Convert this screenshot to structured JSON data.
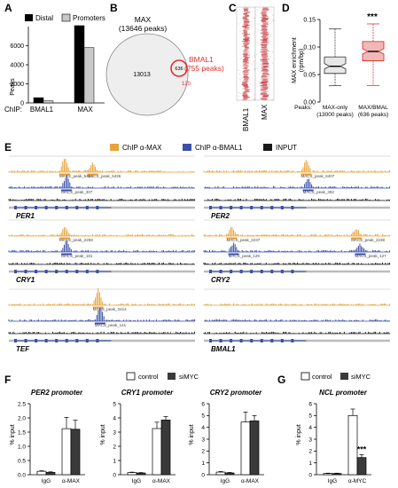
{
  "panels": {
    "A": "A",
    "B": "B",
    "C": "C",
    "D": "D",
    "E": "E",
    "F": "F",
    "G": "G"
  },
  "colors": {
    "max": "#e8a33a",
    "bmal1": "#3a4fa8",
    "input": "#1a1a1a",
    "bmal1_circle": "#e03030",
    "box_red": "#d63a3a",
    "bar_dark": "#3a3a3a",
    "bar_light": "#c8c8c8",
    "heat": "#c0262c"
  },
  "chart_data": [
    {
      "panel": "A",
      "type": "bar",
      "ylabel": "Peaks",
      "xlabel_prefix": "ChIP:",
      "categories": [
        "BMAL1",
        "MAX"
      ],
      "series": [
        {
          "name": "Distal",
          "values": [
            550,
            8100
          ]
        },
        {
          "name": "Promoters",
          "values": [
            210,
            5800
          ]
        }
      ],
      "ylim": [
        0,
        8000
      ],
      "yticks": [
        "0",
        "2000",
        "4000",
        "6000"
      ],
      "legend": "top"
    },
    {
      "panel": "B",
      "type": "venn",
      "sets": [
        {
          "name": "MAX",
          "peaks": "(13646 peaks)",
          "only": "13013"
        },
        {
          "name": "BMAL1",
          "peaks": "(755 peaks)",
          "only": "120"
        }
      ],
      "overlap": "636"
    },
    {
      "panel": "C",
      "type": "heatmap",
      "columns": [
        "BMAL1",
        "MAX"
      ]
    },
    {
      "panel": "D",
      "type": "box",
      "ylabel": "MAX enrichment\n(rpm/bp)",
      "ylim": [
        0.0,
        0.15
      ],
      "yticks": [
        "0.00",
        "0.05",
        "0.10",
        "0.15"
      ],
      "xlabel_prefix": "Peaks:",
      "categories": [
        {
          "label": "MAX-only",
          "n": "(13000 peaks)",
          "min": 0.03,
          "q1": 0.052,
          "median": 0.065,
          "q3": 0.082,
          "max": 0.133
        },
        {
          "label": "MAX/BMAL",
          "n": "(636 peaks)",
          "min": 0.03,
          "q1": 0.075,
          "median": 0.092,
          "q3": 0.11,
          "max": 0.142
        }
      ],
      "significance": "***"
    },
    {
      "panel": "F",
      "type": "bar",
      "legend": [
        "control",
        "siMYC"
      ],
      "ylabel": "% input",
      "charts": [
        {
          "title": "PER2 promoter",
          "categories": [
            "IgG",
            "α-MAX"
          ],
          "series": [
            {
              "name": "control",
              "values": [
                0.12,
                1.62
              ],
              "errors": [
                0.02,
                0.4
              ]
            },
            {
              "name": "siMYC",
              "values": [
                0.08,
                1.6
              ],
              "errors": [
                0.02,
                0.32
              ]
            }
          ],
          "ylim": [
            0,
            2.5
          ],
          "yticks": [
            "0.0",
            "0.5",
            "1.0",
            "1.5",
            "2.0",
            "2.5"
          ]
        },
        {
          "title": "CRY1 promoter",
          "categories": [
            "IgG",
            "α-MAX"
          ],
          "series": [
            {
              "name": "control",
              "values": [
                0.15,
                3.25
              ],
              "errors": [
                0.03,
                0.45
              ]
            },
            {
              "name": "siMYC",
              "values": [
                0.12,
                3.85
              ],
              "errors": [
                0.03,
                0.25
              ]
            }
          ],
          "ylim": [
            0,
            5
          ],
          "yticks": [
            "0",
            "1",
            "2",
            "3",
            "4",
            "5"
          ]
        },
        {
          "title": "CRY2 promoter",
          "categories": [
            "IgG",
            "α-MAX"
          ],
          "series": [
            {
              "name": "control",
              "values": [
                0.22,
                4.45
              ],
              "errors": [
                0.05,
                0.85
              ]
            },
            {
              "name": "siMYC",
              "values": [
                0.15,
                4.55
              ],
              "errors": [
                0.04,
                0.45
              ]
            }
          ],
          "ylim": [
            0,
            6
          ],
          "yticks": [
            "0",
            "1",
            "2",
            "3",
            "4",
            "5",
            "6"
          ]
        }
      ]
    },
    {
      "panel": "G",
      "type": "bar",
      "legend": [
        "control",
        "siMYC"
      ],
      "ylabel": "% input",
      "title": "NCL promoter",
      "categories": [
        "IgG",
        "α-MYC"
      ],
      "series": [
        {
          "name": "control",
          "values": [
            0.1,
            5.0
          ],
          "errors": [
            0.03,
            0.55
          ]
        },
        {
          "name": "siMYC",
          "values": [
            0.1,
            1.45
          ],
          "errors": [
            0.03,
            0.25
          ]
        }
      ],
      "ylim": [
        0,
        6
      ],
      "yticks": [
        "0",
        "1",
        "2",
        "3",
        "4",
        "5",
        "6"
      ],
      "significance": "***"
    }
  ],
  "genome": {
    "legend": [
      "ChIP α-MAX",
      "ChIP α-BMAL1",
      "INPUT"
    ],
    "blocks": [
      {
        "gene": "PER1",
        "max_peaks": [
          "MACS_peak_5434",
          "MACS_peak_5426"
        ],
        "bmal1_peaks": [
          "MACS_peak_307"
        ]
      },
      {
        "gene": "PER2",
        "max_peaks": [
          "MACS_peak_6407"
        ],
        "bmal1_peaks": [
          "MACS_peak_492"
        ]
      },
      {
        "gene": "CRY1",
        "max_peaks": [
          "MACS_peak_2259"
        ],
        "bmal1_peaks": [
          "MACS_peak_181"
        ]
      },
      {
        "gene": "CRY2",
        "max_peaks": [
          "MACS_peak_2237",
          "MACS_peak_2238"
        ],
        "bmal1_peaks": [
          "MACS_peak_129",
          "MACS_peak_127"
        ]
      },
      {
        "gene": "TEF",
        "max_peaks": [
          "MACS_peak_3414"
        ],
        "bmal1_peaks": [
          "MACS_peak_141"
        ]
      },
      {
        "gene": "BMAL1",
        "max_peaks": [],
        "bmal1_peaks": []
      }
    ]
  }
}
